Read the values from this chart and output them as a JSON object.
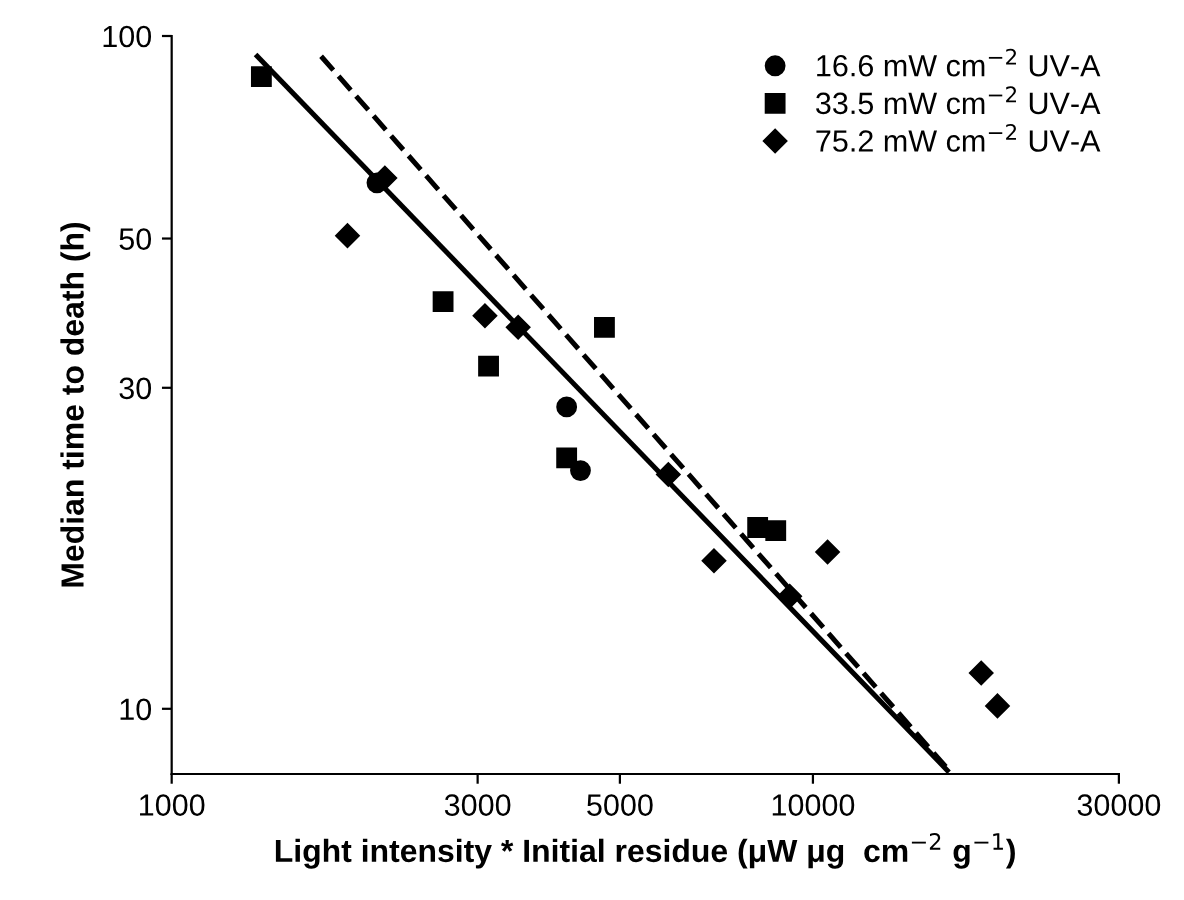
{
  "chart_data": {
    "type": "scatter",
    "xlabel": "Light intensity * Initial residue (μW μg  cm$^{−2}$ g$^{−1}$)",
    "ylabel": "Median time to death (h)",
    "log": "xy",
    "xlim": [
      1000,
      30000
    ],
    "xticks": [
      1000,
      3000,
      5000,
      10000,
      30000
    ],
    "ylim": [
      8,
      100
    ],
    "yticks": [
      10,
      30,
      50,
      100
    ],
    "grid": false,
    "legend": "top right",
    "series": [
      {
        "name": "16.6 mW cm$^{−2}$ UV-A",
        "color": "#000000",
        "marker": "circle",
        "x": [
          2090,
          4130,
          4340
        ],
        "values": [
          60.5,
          28.1,
          22.6
        ]
      },
      {
        "name": "33.5 mW cm$^{−2}$ UV-A",
        "color": "#000000",
        "marker": "square",
        "x": [
          1380,
          2650,
          3120,
          4730,
          4130,
          8200,
          8750
        ],
        "values": [
          87,
          40.3,
          32.3,
          36.9,
          23.6,
          18.6,
          18.4
        ]
      },
      {
        "name": "75.2 mW cm$^{−2}$ UV-A",
        "color": "#000000",
        "marker": "diamond",
        "x": [
          1880,
          2150,
          3080,
          3470,
          5950,
          7010,
          9200,
          10540,
          18300,
          19400
        ],
        "values": [
          50.5,
          61.5,
          38.4,
          36.9,
          22.3,
          16.6,
          14.7,
          17.1,
          11.3,
          10.1
        ]
      },
      {
        "type": "line",
        "color": "#000000",
        "line_style": "solid",
        "x": [
          1360,
          16200
        ],
        "values": [
          93.3,
          8.1
        ]
      },
      {
        "type": "line",
        "color": "#000000",
        "line_style": "dashed",
        "x": [
          1710,
          16300
        ],
        "values": [
          93.3,
          8.1
        ]
      }
    ]
  }
}
